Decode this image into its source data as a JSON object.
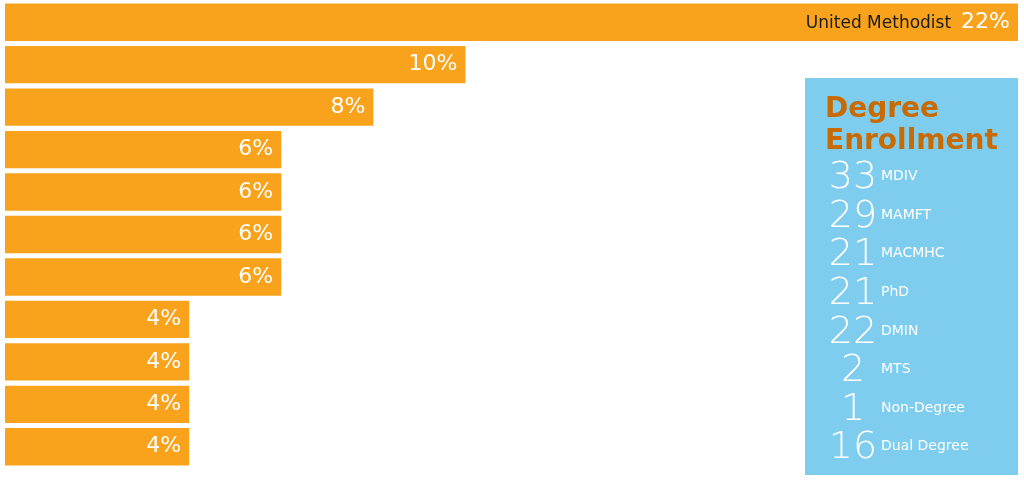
{
  "chart_data": [
    {
      "type": "bar",
      "orientation": "horizontal",
      "categories": [
        "United Methodist",
        null,
        null,
        null,
        null,
        null,
        null,
        null,
        null,
        null,
        null
      ],
      "values": [
        22,
        10,
        8,
        6,
        6,
        6,
        6,
        4,
        4,
        4,
        4
      ],
      "value_labels": [
        "22%",
        "10%",
        "8%",
        "6%",
        "6%",
        "6%",
        "6%",
        "4%",
        "4%",
        "4%",
        "4%"
      ],
      "color": "#f9a31c",
      "xlim": [
        0,
        22
      ]
    },
    {
      "type": "other",
      "title": "Degree Enrollment",
      "categories": [
        "MDIV",
        "MAMFT",
        "MACMHC",
        "PhD",
        "DMIN",
        "MTS",
        "Non-Degree",
        "Dual Degree"
      ],
      "values": [
        33,
        29,
        21,
        21,
        22,
        2,
        1,
        16
      ],
      "data_labels": true
    }
  ]
}
